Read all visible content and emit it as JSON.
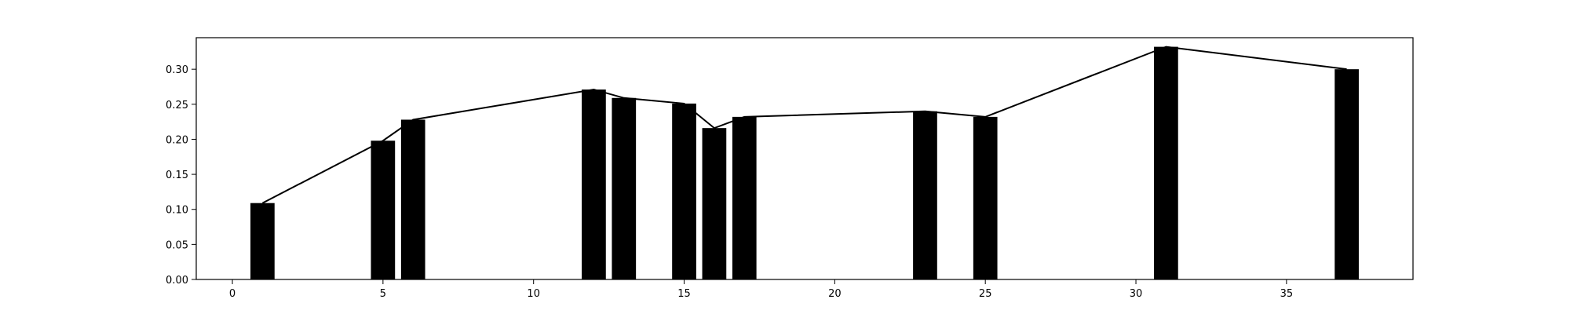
{
  "chart_data": {
    "type": "bar",
    "title": "",
    "xlabel": "",
    "ylabel": "",
    "xlim": [
      -1.2,
      39.2
    ],
    "ylim": [
      0,
      0.345
    ],
    "xticks": [
      0,
      5,
      10,
      15,
      20,
      25,
      30,
      35
    ],
    "yticks": [
      0.0,
      0.05,
      0.1,
      0.15,
      0.2,
      0.25,
      0.3
    ],
    "xtick_labels": [
      "0",
      "5",
      "10",
      "15",
      "20",
      "25",
      "30",
      "35"
    ],
    "ytick_labels": [
      "0.00",
      "0.05",
      "0.10",
      "0.15",
      "0.20",
      "0.25",
      "0.30"
    ],
    "grid": false,
    "bar_width": 0.8,
    "bar_color": "#000000",
    "line_color": "#000000",
    "series": [
      {
        "type": "bar",
        "x": [
          1,
          5,
          6,
          12,
          13,
          15,
          16,
          17,
          23,
          25,
          31,
          37
        ],
        "values": [
          0.109,
          0.198,
          0.228,
          0.271,
          0.259,
          0.251,
          0.216,
          0.232,
          0.24,
          0.232,
          0.332,
          0.3
        ]
      },
      {
        "type": "line",
        "x": [
          1,
          5,
          6,
          12,
          13,
          15,
          16,
          17,
          23,
          25,
          31,
          37
        ],
        "values": [
          0.109,
          0.198,
          0.228,
          0.271,
          0.259,
          0.251,
          0.216,
          0.232,
          0.24,
          0.232,
          0.332,
          0.3
        ]
      }
    ]
  }
}
